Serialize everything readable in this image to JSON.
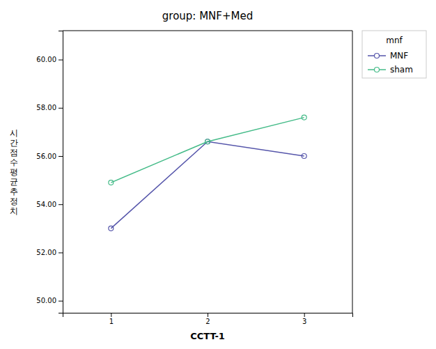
{
  "chart_data": {
    "type": "line",
    "title": "group: MNF+Med",
    "xlabel": "CCTT-1",
    "ylabel": "시간점수평균추정치",
    "x": [
      1,
      2,
      3
    ],
    "series": [
      {
        "name": "MNF",
        "color": "#5555aa",
        "marker": "circle",
        "values": [
          53.0,
          56.6,
          56.0
        ]
      },
      {
        "name": "sham",
        "color": "#44bb88",
        "marker": "circle",
        "values": [
          54.9,
          56.6,
          57.6
        ]
      }
    ],
    "xlim": [
      0.5,
      3.5
    ],
    "xticks": [
      1,
      2,
      3
    ],
    "ylim": [
      49.5,
      61.2
    ],
    "yticks": [
      {
        "value": 50.0,
        "label": "50.00"
      },
      {
        "value": 52.0,
        "label": "52.00"
      },
      {
        "value": 54.0,
        "label": "54.00"
      },
      {
        "value": 56.0,
        "label": "56.00"
      },
      {
        "value": 58.0,
        "label": "58.00"
      },
      {
        "value": 60.0,
        "label": "60.00"
      }
    ],
    "legend": "right",
    "legend_title": "mnf",
    "grid": false
  }
}
